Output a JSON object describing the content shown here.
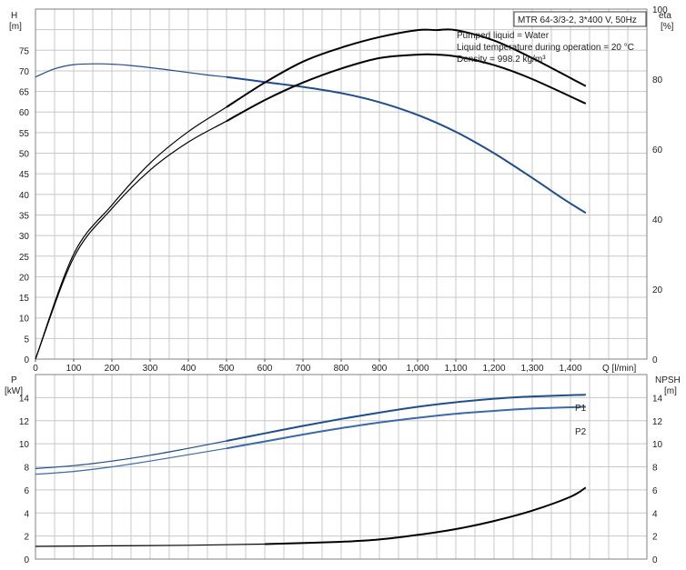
{
  "title": "MTR 64-3/3-2, 3*400 V, 50Hz",
  "info_lines": [
    "Pumped liquid = Water",
    "Liquid temperature during operation = 20 °C",
    "Density = 998.2 kg/m³"
  ],
  "colors": {
    "head": "#1f4e8c",
    "p1": "#1f4e8c",
    "p2": "#3a6aa8",
    "eta": "#000000",
    "npsh": "#000000",
    "grid": "#c8c8c8"
  },
  "chart_data": [
    {
      "type": "line",
      "panel": "top",
      "xlabel": "Q [l/min]",
      "ylabel_left": "H",
      "ylabel_left_unit": "[m]",
      "ylabel_right": "eta",
      "ylabel_right_unit": "[%]",
      "xlim": [
        0,
        1600
      ],
      "ylim_left": [
        0,
        85
      ],
      "ylim_right": [
        0,
        100
      ],
      "x_ticks": [
        0,
        100,
        200,
        300,
        400,
        500,
        600,
        700,
        800,
        900,
        1000,
        1100,
        1200,
        1300,
        1400
      ],
      "x_tick_labels": [
        "0",
        "100",
        "200",
        "300",
        "400",
        "500",
        "600",
        "700",
        "800",
        "900",
        "1,000",
        "1,100",
        "1,200",
        "1,300",
        "1,400"
      ],
      "y_ticks_left": [
        0,
        5,
        10,
        15,
        20,
        25,
        30,
        35,
        40,
        45,
        50,
        55,
        60,
        65,
        70,
        75
      ],
      "y_ticks_right": [
        0,
        20,
        40,
        60,
        80,
        100
      ],
      "grid": true,
      "series": [
        {
          "axis": "left",
          "color": "head",
          "x": [
            0,
            50,
            100,
            170,
            250,
            350,
            450,
            500,
            600,
            700,
            800,
            900,
            1000,
            1100,
            1200,
            1300,
            1380,
            1440
          ],
          "y": [
            68.5,
            70.5,
            71.5,
            71.7,
            71.3,
            70.2,
            69.0,
            68.5,
            67.3,
            66.1,
            64.6,
            62.4,
            59.3,
            55.2,
            50.0,
            44.0,
            39.0,
            35.5
          ]
        },
        {
          "axis": "right",
          "color": "eta",
          "x": [
            0,
            100,
            200,
            300,
            400,
            500,
            600,
            700,
            800,
            900,
            1000,
            1050,
            1100,
            1200,
            1300,
            1440
          ],
          "y": [
            0,
            30,
            44,
            56,
            65,
            72,
            79,
            85,
            89,
            92,
            94,
            94,
            94,
            91,
            86,
            78
          ]
        },
        {
          "axis": "right",
          "color": "eta",
          "x": [
            0,
            100,
            200,
            300,
            400,
            500,
            600,
            700,
            800,
            900,
            1000,
            1050,
            1100,
            1200,
            1300,
            1440
          ],
          "y": [
            0,
            29,
            43,
            54,
            62,
            68,
            74,
            79,
            83,
            86,
            87,
            87,
            86.5,
            84,
            80,
            73
          ]
        }
      ]
    },
    {
      "type": "line",
      "panel": "bottom",
      "xlabel": "",
      "ylabel_left": "P",
      "ylabel_left_unit": "[kW]",
      "ylabel_right": "NPSH",
      "ylabel_right_unit": "[m]",
      "xlim": [
        0,
        1600
      ],
      "ylim_left": [
        0,
        16
      ],
      "ylim_right": [
        0,
        16
      ],
      "y_ticks_left": [
        0,
        2,
        4,
        6,
        8,
        10,
        12,
        14
      ],
      "y_ticks_right": [
        0,
        2,
        4,
        6,
        8,
        10,
        12,
        14
      ],
      "grid": true,
      "series": [
        {
          "name": "P1",
          "axis": "left",
          "color": "p1",
          "x": [
            0,
            100,
            200,
            300,
            400,
            500,
            600,
            700,
            800,
            900,
            1000,
            1100,
            1200,
            1300,
            1440
          ],
          "y": [
            7.85,
            8.1,
            8.5,
            9.0,
            9.6,
            10.25,
            10.9,
            11.55,
            12.15,
            12.7,
            13.2,
            13.6,
            13.9,
            14.1,
            14.25
          ]
        },
        {
          "name": "P2",
          "axis": "left",
          "color": "p2",
          "x": [
            0,
            100,
            200,
            300,
            400,
            500,
            600,
            700,
            800,
            900,
            1000,
            1100,
            1200,
            1300,
            1440
          ],
          "y": [
            7.35,
            7.6,
            8.0,
            8.5,
            9.05,
            9.6,
            10.2,
            10.8,
            11.35,
            11.85,
            12.25,
            12.6,
            12.85,
            13.05,
            13.2
          ]
        },
        {
          "axis": "right",
          "color": "npsh",
          "x": [
            0,
            200,
            400,
            600,
            800,
            900,
            1000,
            1100,
            1200,
            1300,
            1400,
            1440
          ],
          "y": [
            1.1,
            1.15,
            1.2,
            1.3,
            1.5,
            1.7,
            2.1,
            2.6,
            3.3,
            4.2,
            5.4,
            6.2
          ]
        }
      ]
    }
  ]
}
